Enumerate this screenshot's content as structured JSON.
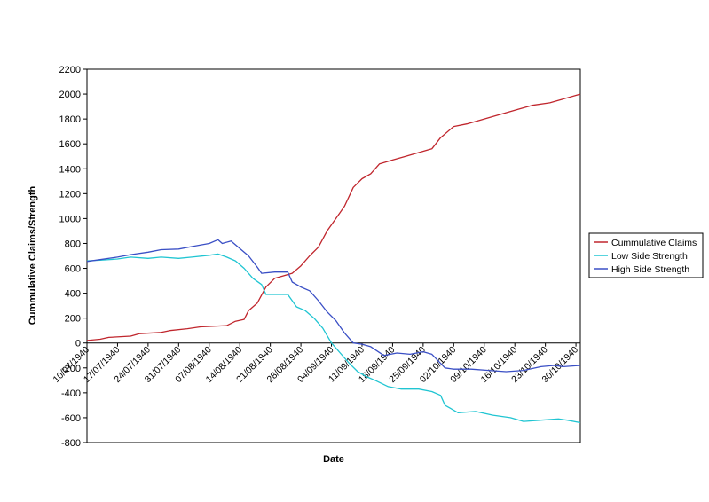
{
  "chart_data": {
    "type": "line",
    "xlabel": "Date",
    "ylabel": "Cummulative Claims/Strength",
    "ylim": [
      -800,
      2200
    ],
    "yticks": [
      -800,
      -600,
      -400,
      -200,
      0,
      200,
      400,
      600,
      800,
      1000,
      1200,
      1400,
      1600,
      1800,
      2000,
      2200
    ],
    "xlim": [
      "10/07/1940",
      "31/10/1940"
    ],
    "xtick_labels": [
      "10/07/1940",
      "17/07/1940",
      "24/07/1940",
      "31/07/1940",
      "07/08/1940",
      "14/08/1940",
      "21/08/1940",
      "28/08/1940",
      "04/09/1940",
      "11/09/1940",
      "18/09/1940",
      "25/09/1940",
      "02/10/1940",
      "09/10/1940",
      "16/10/1940",
      "23/10/1940",
      "30/10/1940"
    ],
    "grid": false,
    "legend_position": "right",
    "series": [
      {
        "name": "Cummulative Claims",
        "color": "#c0262d",
        "points": [
          [
            "10/07/1940",
            20
          ],
          [
            "13/07/1940",
            30
          ],
          [
            "15/07/1940",
            45
          ],
          [
            "20/07/1940",
            55
          ],
          [
            "22/07/1940",
            75
          ],
          [
            "27/07/1940",
            85
          ],
          [
            "29/07/1940",
            100
          ],
          [
            "02/08/1940",
            115
          ],
          [
            "05/08/1940",
            130
          ],
          [
            "11/08/1940",
            140
          ],
          [
            "13/08/1940",
            175
          ],
          [
            "15/08/1940",
            190
          ],
          [
            "16/08/1940",
            260
          ],
          [
            "18/08/1940",
            320
          ],
          [
            "20/08/1940",
            450
          ],
          [
            "22/08/1940",
            520
          ],
          [
            "24/08/1940",
            540
          ],
          [
            "26/08/1940",
            560
          ],
          [
            "28/08/1940",
            620
          ],
          [
            "30/08/1940",
            700
          ],
          [
            "01/09/1940",
            770
          ],
          [
            "03/09/1940",
            900
          ],
          [
            "05/09/1940",
            1000
          ],
          [
            "07/09/1940",
            1100
          ],
          [
            "09/09/1940",
            1250
          ],
          [
            "11/09/1940",
            1320
          ],
          [
            "13/09/1940",
            1360
          ],
          [
            "15/09/1940",
            1440
          ],
          [
            "18/09/1940",
            1470
          ],
          [
            "21/09/1940",
            1500
          ],
          [
            "24/09/1940",
            1530
          ],
          [
            "27/09/1940",
            1560
          ],
          [
            "29/09/1940",
            1650
          ],
          [
            "02/10/1940",
            1740
          ],
          [
            "05/10/1940",
            1760
          ],
          [
            "09/10/1940",
            1800
          ],
          [
            "13/10/1940",
            1840
          ],
          [
            "17/10/1940",
            1880
          ],
          [
            "20/10/1940",
            1910
          ],
          [
            "24/10/1940",
            1930
          ],
          [
            "27/10/1940",
            1960
          ],
          [
            "30/10/1940",
            1990
          ],
          [
            "31/10/1940",
            2000
          ]
        ]
      },
      {
        "name": "Low Side Strength",
        "color": "#20c5d2",
        "points": [
          [
            "10/07/1940",
            660
          ],
          [
            "13/07/1940",
            665
          ],
          [
            "17/07/1940",
            675
          ],
          [
            "20/07/1940",
            690
          ],
          [
            "24/07/1940",
            680
          ],
          [
            "27/07/1940",
            690
          ],
          [
            "31/07/1940",
            680
          ],
          [
            "03/08/1940",
            690
          ],
          [
            "07/08/1940",
            705
          ],
          [
            "09/08/1940",
            715
          ],
          [
            "11/08/1940",
            690
          ],
          [
            "13/08/1940",
            660
          ],
          [
            "15/08/1940",
            600
          ],
          [
            "17/08/1940",
            520
          ],
          [
            "19/08/1940",
            470
          ],
          [
            "20/08/1940",
            390
          ],
          [
            "23/08/1940",
            390
          ],
          [
            "25/08/1940",
            390
          ],
          [
            "27/08/1940",
            290
          ],
          [
            "29/08/1940",
            260
          ],
          [
            "31/08/1940",
            200
          ],
          [
            "02/09/1940",
            120
          ],
          [
            "04/09/1940",
            0
          ],
          [
            "06/09/1940",
            -80
          ],
          [
            "08/09/1940",
            -160
          ],
          [
            "10/09/1940",
            -230
          ],
          [
            "12/09/1940",
            -270
          ],
          [
            "14/09/1940",
            -300
          ],
          [
            "17/09/1940",
            -350
          ],
          [
            "20/09/1940",
            -370
          ],
          [
            "24/09/1940",
            -370
          ],
          [
            "27/09/1940",
            -390
          ],
          [
            "29/09/1940",
            -420
          ],
          [
            "30/09/1940",
            -500
          ],
          [
            "03/10/1940",
            -560
          ],
          [
            "07/10/1940",
            -550
          ],
          [
            "11/10/1940",
            -580
          ],
          [
            "15/10/1940",
            -600
          ],
          [
            "18/10/1940",
            -630
          ],
          [
            "22/10/1940",
            -620
          ],
          [
            "26/10/1940",
            -610
          ],
          [
            "28/10/1940",
            -620
          ],
          [
            "31/10/1940",
            -640
          ]
        ]
      },
      {
        "name": "High Side Strength",
        "color": "#3a4fc5",
        "points": [
          [
            "10/07/1940",
            655
          ],
          [
            "13/07/1940",
            670
          ],
          [
            "17/07/1940",
            690
          ],
          [
            "20/07/1940",
            710
          ],
          [
            "24/07/1940",
            730
          ],
          [
            "27/07/1940",
            750
          ],
          [
            "31/07/1940",
            755
          ],
          [
            "03/08/1940",
            775
          ],
          [
            "07/08/1940",
            800
          ],
          [
            "09/08/1940",
            830
          ],
          [
            "10/08/1940",
            800
          ],
          [
            "12/08/1940",
            820
          ],
          [
            "14/08/1940",
            760
          ],
          [
            "16/08/1940",
            700
          ],
          [
            "18/08/1940",
            610
          ],
          [
            "19/08/1940",
            560
          ],
          [
            "22/08/1940",
            570
          ],
          [
            "25/08/1940",
            570
          ],
          [
            "26/08/1940",
            490
          ],
          [
            "28/08/1940",
            450
          ],
          [
            "30/08/1940",
            420
          ],
          [
            "01/09/1940",
            340
          ],
          [
            "03/09/1940",
            250
          ],
          [
            "05/09/1940",
            180
          ],
          [
            "07/09/1940",
            80
          ],
          [
            "09/09/1940",
            0
          ],
          [
            "11/09/1940",
            -10
          ],
          [
            "13/09/1940",
            -30
          ],
          [
            "16/09/1940",
            -100
          ],
          [
            "19/09/1940",
            -80
          ],
          [
            "22/09/1940",
            -90
          ],
          [
            "25/09/1940",
            -70
          ],
          [
            "27/09/1940",
            -90
          ],
          [
            "30/09/1940",
            -200
          ],
          [
            "02/10/1940",
            -210
          ],
          [
            "06/10/1940",
            -210
          ],
          [
            "10/10/1940",
            -220
          ],
          [
            "14/10/1940",
            -230
          ],
          [
            "18/10/1940",
            -220
          ],
          [
            "22/10/1940",
            -190
          ],
          [
            "25/10/1940",
            -180
          ],
          [
            "27/10/1940",
            -190
          ],
          [
            "31/10/1940",
            -180
          ]
        ]
      }
    ]
  }
}
